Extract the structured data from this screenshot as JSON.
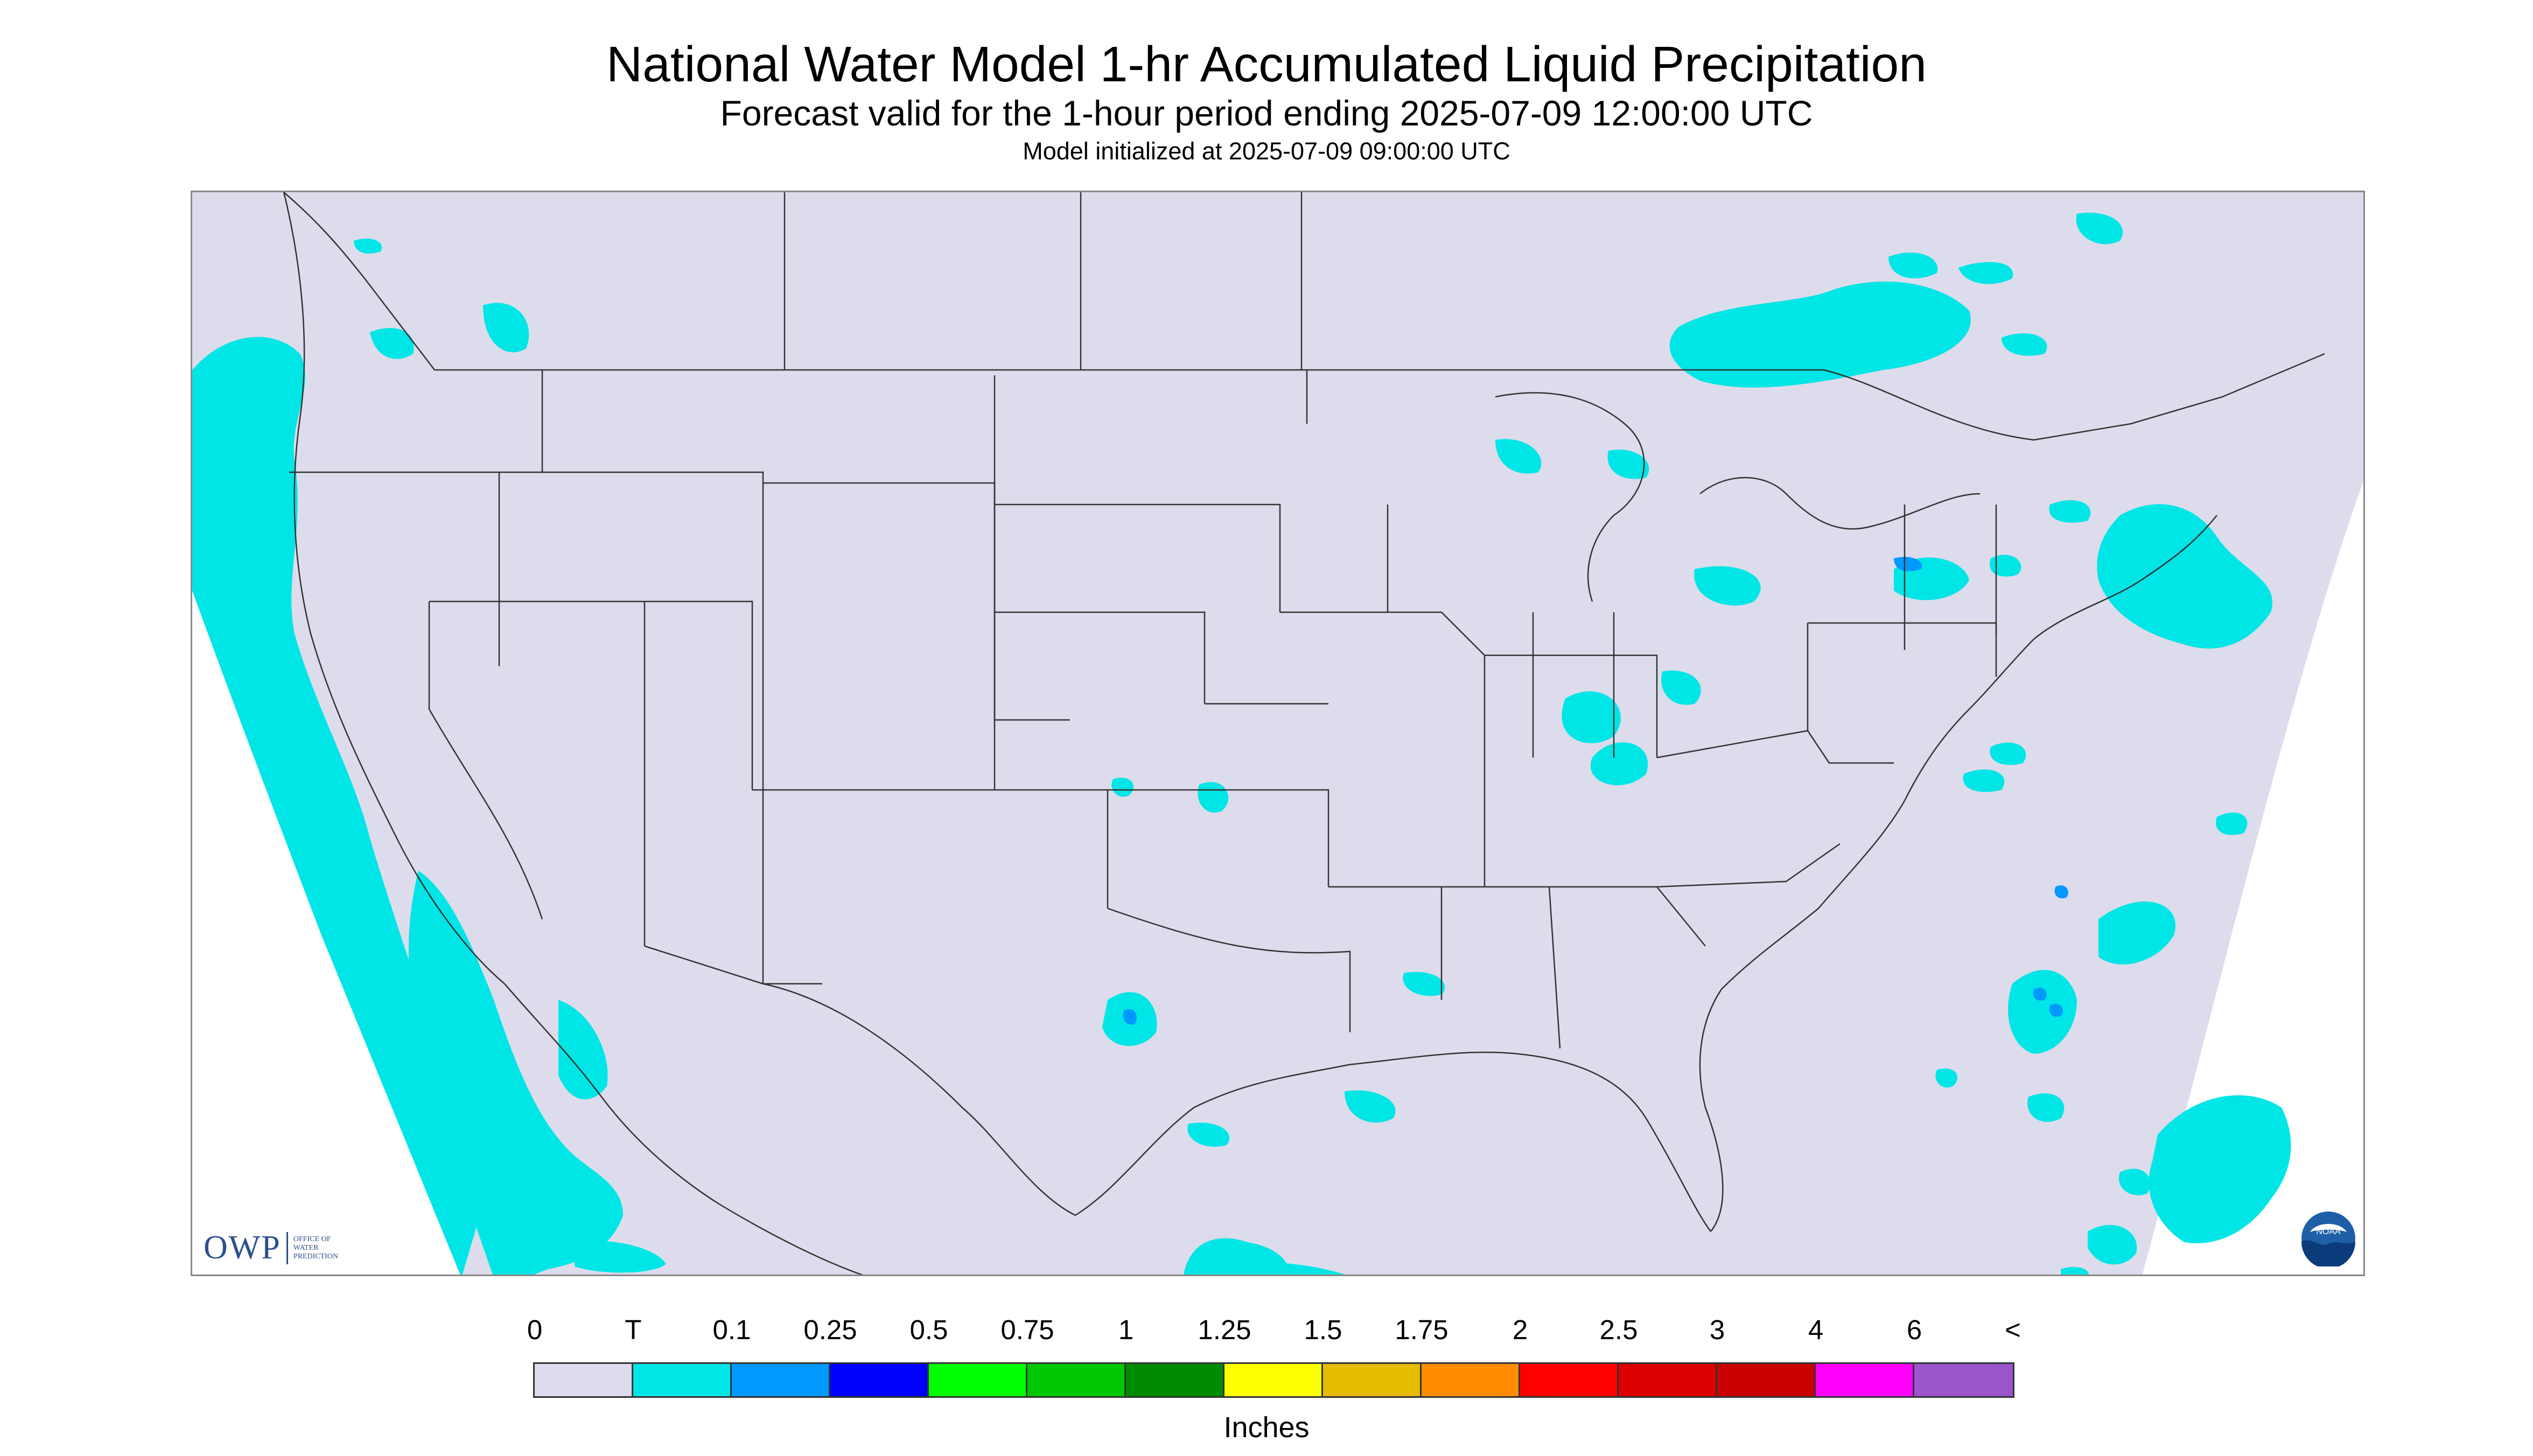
{
  "header": {
    "title": "National Water Model 1-hr Accumulated Liquid Precipitation",
    "subtitle": "Forecast valid for the 1-hour period ending 2025-07-09 12:00:00 UTC",
    "init": "Model initialized at 2025-07-09 09:00:00 UTC"
  },
  "map": {
    "background_color": "#dcdcec",
    "light_precip_color": "#00e5e5",
    "moderate_precip_color": "#0099ff",
    "line_color": "#333333"
  },
  "logos": {
    "owp_big": "OWP",
    "owp_small": [
      "OFFICE OF",
      "WATER",
      "PREDICTION"
    ],
    "noaa_text": "NOAA"
  },
  "legend": {
    "labels": [
      "0",
      "T",
      "0.1",
      "0.25",
      "0.5",
      "0.75",
      "1",
      "1.25",
      "1.5",
      "1.75",
      "2",
      "2.5",
      "3",
      "4",
      "6",
      "<"
    ],
    "colors": [
      "#dcdcec",
      "#00e5e5",
      "#0099ff",
      "#0000ff",
      "#00ff00",
      "#00c800",
      "#008c00",
      "#ffff00",
      "#e6bc00",
      "#ff8c00",
      "#ff0000",
      "#dc0000",
      "#c80000",
      "#ff00ff",
      "#9955cc"
    ],
    "units": "Inches"
  }
}
